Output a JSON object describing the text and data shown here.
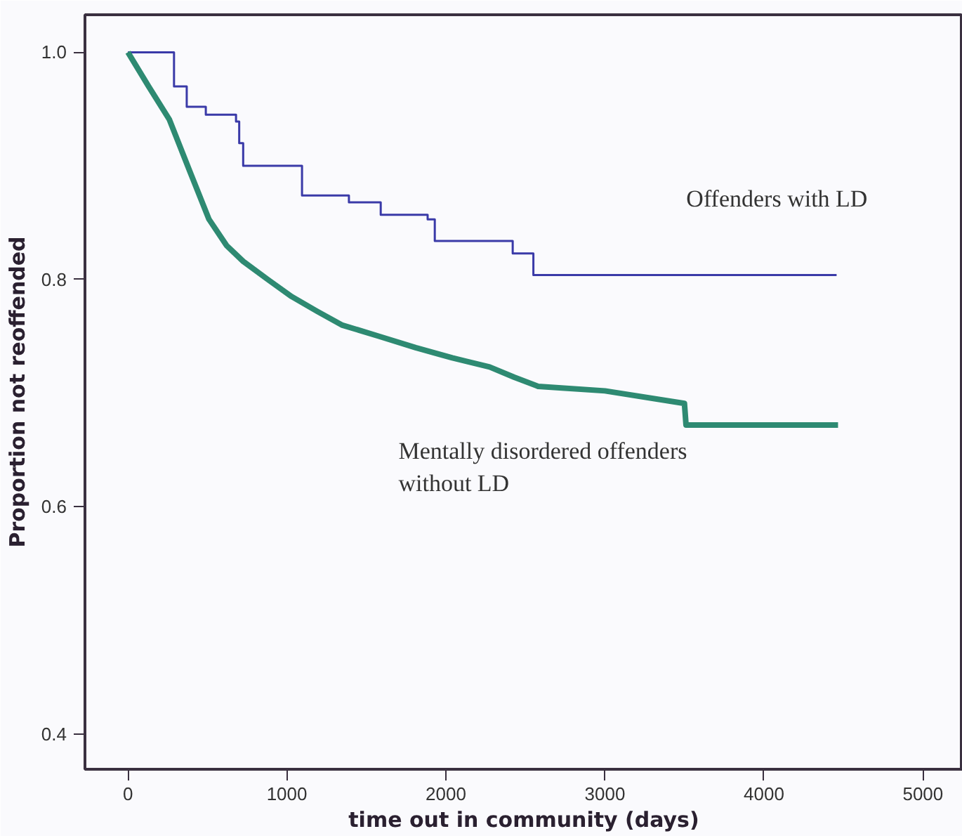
{
  "chart_data": {
    "type": "step",
    "xlabel": "time out in community (days)",
    "ylabel": "Proportion not reoffended",
    "xlim": [
      -270,
      5250
    ],
    "ylim": [
      0.369,
      1.033
    ],
    "xticks": [
      0,
      1000,
      2000,
      3000,
      4000,
      5000
    ],
    "yticks": [
      {
        "value": 0.4,
        "label": "0.4"
      },
      {
        "value": 0.6,
        "label": "0.6"
      },
      {
        "value": 0.8,
        "label": "0.8"
      },
      {
        "value": 1.0,
        "label": "1.0"
      }
    ],
    "grid": false,
    "series": [
      {
        "name": "Offenders with LD",
        "color": "#3a3aa8",
        "x": [
          0,
          290,
          370,
          490,
          680,
          700,
          725,
          1095,
          1390,
          1590,
          1885,
          1930,
          2420,
          2550,
          4457
        ],
        "values": [
          1.0,
          0.97,
          0.952,
          0.945,
          0.939,
          0.92,
          0.9,
          0.874,
          0.868,
          0.857,
          0.853,
          0.834,
          0.823,
          0.804,
          0.804
        ]
      },
      {
        "name": "Mentally disordered offenders\nwithout LD",
        "color": "#2e8a72",
        "type": "line",
        "x": [
          0,
          130,
          260,
          390,
          510,
          620,
          725,
          880,
          1030,
          1190,
          1345,
          1580,
          1810,
          2040,
          2275,
          2430,
          2580,
          3000,
          3500,
          3510,
          4466
        ],
        "values": [
          1.0,
          0.97,
          0.941,
          0.895,
          0.853,
          0.83,
          0.816,
          0.8,
          0.785,
          0.772,
          0.76,
          0.75,
          0.74,
          0.731,
          0.723,
          0.714,
          0.706,
          0.702,
          0.691,
          0.672,
          0.672
        ]
      }
    ]
  }
}
